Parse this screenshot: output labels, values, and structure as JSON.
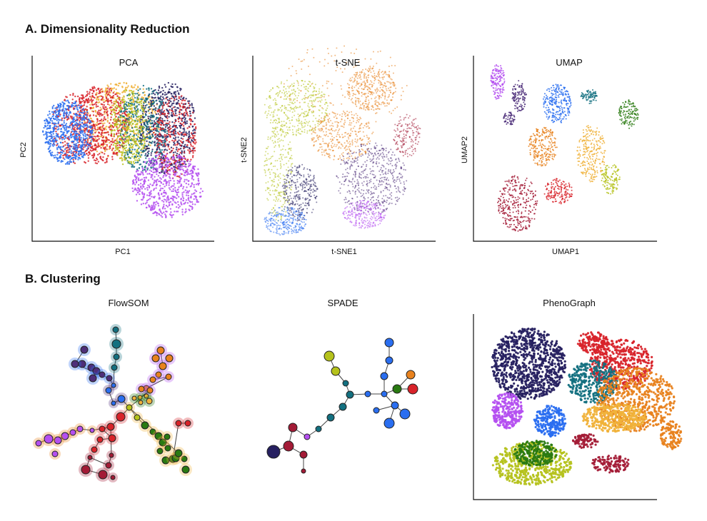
{
  "section_a": {
    "title": "A. Dimensionality Reduction",
    "panels": [
      {
        "title": "PCA",
        "xlabel": "PC1",
        "ylabel": "PC2"
      },
      {
        "title": "t-SNE",
        "xlabel": "t-SNE1",
        "ylabel": "t-SNE2"
      },
      {
        "title": "UMAP",
        "xlabel": "UMAP1",
        "ylabel": "UMAP2"
      }
    ]
  },
  "section_b": {
    "title": "B. Clustering",
    "panels": [
      {
        "title": "FlowSOM"
      },
      {
        "title": "SPADE"
      },
      {
        "title": "PhenoGraph"
      }
    ]
  },
  "colors": {
    "blue": "#2a6ef0",
    "red": "#d8232a",
    "orange": "#e8821e",
    "yellow": "#f0b23a",
    "olive": "#b5c21c",
    "green": "#2a7a12",
    "teal": "#137080",
    "navy": "#262060",
    "purple": "#4e2f7a",
    "magenta": "#b44ff0",
    "crimson": "#a31b36"
  }
}
